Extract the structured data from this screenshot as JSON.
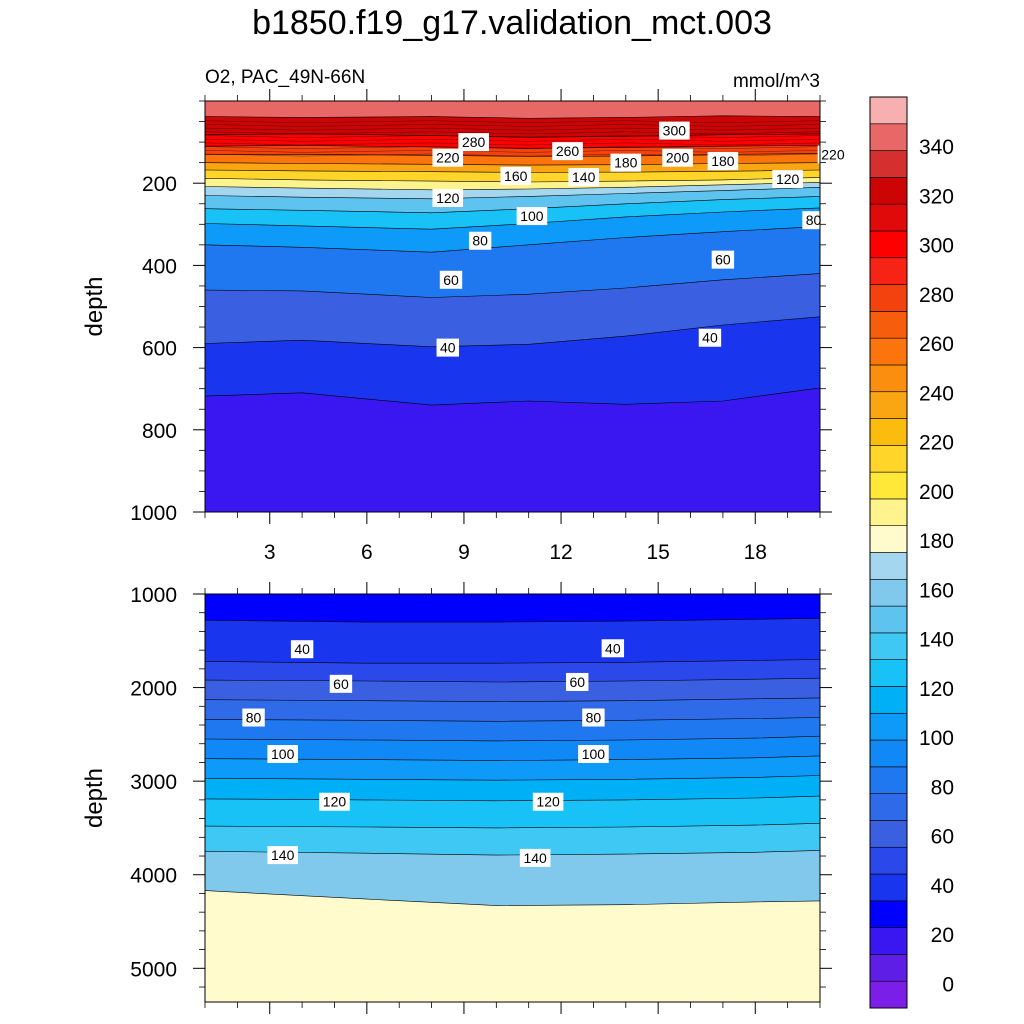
{
  "title": "b1850.f19_g17.validation_mct.003",
  "chart_data": [
    {
      "type": "contour",
      "panel": "upper",
      "left_label": "O2, PAC_49N-66N",
      "right_label": "mmol/m^3",
      "ylabel": "depth",
      "xlabel": "",
      "xlim": [
        1,
        20
      ],
      "ylim": [
        1000,
        0
      ],
      "x_ticks": [
        3,
        6,
        9,
        12,
        15,
        18
      ],
      "y_ticks": [
        200,
        400,
        600,
        800,
        1000
      ],
      "x_minor_step": 1,
      "y_minor_step": 50,
      "contour_levels": [
        300,
        280,
        260,
        240,
        220,
        200,
        180,
        160,
        140,
        120,
        100,
        80,
        60,
        40
      ],
      "contour_depths": {
        "x": [
          1,
          4,
          8,
          11,
          14,
          17,
          20
        ],
        "lines": [
          {
            "level": 300,
            "depth": [
              38,
              40,
              38,
              42,
              40,
              36,
              38
            ]
          },
          {
            "level": 280,
            "depth": [
              82,
              80,
              84,
              88,
              86,
              82,
              80
            ]
          },
          {
            "level": 260,
            "depth": [
              110,
              108,
              112,
              115,
              113,
              110,
              108
            ]
          },
          {
            "level": 240,
            "depth": [
              130,
              130,
              132,
              135,
              134,
              130,
              128
            ]
          },
          {
            "level": 220,
            "depth": [
              150,
              152,
              154,
              156,
              155,
              152,
              150
            ]
          },
          {
            "level": 200,
            "depth": [
              168,
              170,
              172,
              174,
              173,
              171,
              168
            ]
          },
          {
            "level": 180,
            "depth": [
              188,
              192,
              195,
              197,
              195,
              192,
              186
            ]
          },
          {
            "level": 160,
            "depth": [
              208,
              212,
              216,
              214,
              210,
              204,
              198
            ]
          },
          {
            "level": 140,
            "depth": [
              230,
              234,
              238,
              232,
              225,
              218,
              210
            ]
          },
          {
            "level": 120,
            "depth": [
              262,
              266,
              272,
              262,
              250,
              240,
              232
            ]
          },
          {
            "level": 100,
            "depth": [
              298,
              304,
              312,
              298,
              282,
              270,
              260
            ]
          },
          {
            "level": 80,
            "depth": [
              350,
              356,
              368,
              350,
              332,
              318,
              305
            ]
          },
          {
            "level": 60,
            "depth": [
              460,
              462,
              478,
              470,
              455,
              435,
              420
            ]
          },
          {
            "level": 40,
            "depth": [
              590,
              582,
              598,
              592,
              572,
              545,
              525
            ]
          },
          {
            "level": 20,
            "depth": [
              718,
              710,
              740,
              730,
              738,
              730,
              698
            ]
          }
        ]
      },
      "contour_labels": [
        {
          "text": "300",
          "x": 15.5,
          "depth": 72
        },
        {
          "text": "280",
          "x": 9.3,
          "depth": 100
        },
        {
          "text": "260",
          "x": 12.2,
          "depth": 122
        },
        {
          "text": "220",
          "x": 8.5,
          "depth": 138
        },
        {
          "text": "200",
          "x": 15.6,
          "depth": 138
        },
        {
          "text": "180",
          "x": 14.0,
          "depth": 150
        },
        {
          "text": "180",
          "x": 17.0,
          "depth": 146
        },
        {
          "text": "220",
          "x": 20.4,
          "depth": 130
        },
        {
          "text": "160",
          "x": 10.6,
          "depth": 182
        },
        {
          "text": "140",
          "x": 12.7,
          "depth": 185
        },
        {
          "text": "120",
          "x": 19.0,
          "depth": 190
        },
        {
          "text": "120",
          "x": 8.5,
          "depth": 236
        },
        {
          "text": "100",
          "x": 11.1,
          "depth": 280
        },
        {
          "text": "80",
          "x": 19.8,
          "depth": 290
        },
        {
          "text": "80",
          "x": 9.5,
          "depth": 340
        },
        {
          "text": "60",
          "x": 17.0,
          "depth": 386
        },
        {
          "text": "60",
          "x": 8.6,
          "depth": 435
        },
        {
          "text": "40",
          "x": 16.6,
          "depth": 576
        },
        {
          "text": "40",
          "x": 8.5,
          "depth": 600
        }
      ]
    },
    {
      "type": "contour",
      "panel": "lower",
      "ylabel": "depth",
      "xlabel": "",
      "xlim": [
        1,
        20
      ],
      "ylim": [
        5360,
        1000
      ],
      "x_ticks": [
        3,
        6,
        9,
        12,
        15,
        18
      ],
      "y_ticks": [
        1000,
        2000,
        3000,
        4000,
        5000
      ],
      "x_minor_step": 1,
      "y_minor_step": 200,
      "contour_levels": [
        40,
        60,
        80,
        100,
        120,
        140,
        160
      ],
      "contour_depths": {
        "x": [
          1,
          6,
          10,
          14,
          18,
          20
        ],
        "lines": [
          {
            "level": 30,
            "depth": [
              1280,
              1300,
              1300,
              1290,
              1270,
              1260
            ]
          },
          {
            "level": 40,
            "depth": [
              1720,
              1740,
              1740,
              1730,
              1710,
              1700
            ]
          },
          {
            "level": 50,
            "depth": [
              1920,
              1930,
              1940,
              1930,
              1910,
              1900
            ]
          },
          {
            "level": 60,
            "depth": [
              2130,
              2140,
              2150,
              2140,
              2120,
              2110
            ]
          },
          {
            "level": 70,
            "depth": [
              2340,
              2350,
              2360,
              2350,
              2330,
              2320
            ]
          },
          {
            "level": 80,
            "depth": [
              2550,
              2560,
              2570,
              2560,
              2540,
              2520
            ]
          },
          {
            "level": 90,
            "depth": [
              2760,
              2770,
              2780,
              2770,
              2750,
              2730
            ]
          },
          {
            "level": 100,
            "depth": [
              2970,
              2980,
              2990,
              2980,
              2960,
              2940
            ]
          },
          {
            "level": 110,
            "depth": [
              3190,
              3200,
              3210,
              3200,
              3180,
              3160
            ]
          },
          {
            "level": 120,
            "depth": [
              3480,
              3490,
              3500,
              3490,
              3470,
              3450
            ]
          },
          {
            "level": 130,
            "depth": [
              3750,
              3770,
              3790,
              3780,
              3760,
              3740
            ]
          },
          {
            "level": 150,
            "depth": [
              4170,
              4260,
              4330,
              4320,
              4290,
              4280
            ]
          }
        ]
      },
      "contour_labels": [
        {
          "text": "40",
          "x": 4.0,
          "depth": 1590
        },
        {
          "text": "40",
          "x": 13.6,
          "depth": 1580
        },
        {
          "text": "60",
          "x": 5.2,
          "depth": 1960
        },
        {
          "text": "60",
          "x": 12.5,
          "depth": 1940
        },
        {
          "text": "80",
          "x": 2.5,
          "depth": 2320
        },
        {
          "text": "80",
          "x": 13.0,
          "depth": 2320
        },
        {
          "text": "100",
          "x": 3.4,
          "depth": 2710
        },
        {
          "text": "100",
          "x": 13.0,
          "depth": 2710
        },
        {
          "text": "120",
          "x": 5.0,
          "depth": 3220
        },
        {
          "text": "120",
          "x": 11.6,
          "depth": 3220
        },
        {
          "text": "140",
          "x": 3.4,
          "depth": 3790
        },
        {
          "text": "140",
          "x": 11.2,
          "depth": 3820
        }
      ]
    },
    {
      "type": "colorbar",
      "range": [
        -10,
        360
      ],
      "step": 10,
      "tick_labels": [
        "340",
        "320",
        "300",
        "280",
        "260",
        "240",
        "220",
        "200",
        "180",
        "160",
        "140",
        "120",
        "100",
        "80",
        "60",
        "40",
        "20",
        "0"
      ],
      "tick_values": [
        340,
        320,
        300,
        280,
        260,
        240,
        220,
        200,
        180,
        160,
        140,
        120,
        100,
        80,
        60,
        40,
        20,
        0
      ],
      "colors": [
        "#7b1fe8",
        "#5e1ee6",
        "#3a17f0",
        "#0000ff",
        "#1a35ee",
        "#2b49ea",
        "#3a5fe0",
        "#2f6ae8",
        "#1f78f0",
        "#1088f5",
        "#0e9af8",
        "#00b0f7",
        "#18c1f6",
        "#3fc8f4",
        "#5ec4ef",
        "#80c9ec",
        "#a4d6f0",
        "#fffbcc",
        "#fff38e",
        "#ffe838",
        "#ffd52a",
        "#fcbc0e",
        "#f9a612",
        "#fb8e0e",
        "#fb740c",
        "#f65d0c",
        "#f4420e",
        "#f72314",
        "#ff0000",
        "#e00a0a",
        "#cd0404",
        "#d43030",
        "#e86868",
        "#f7afaf"
      ]
    }
  ]
}
